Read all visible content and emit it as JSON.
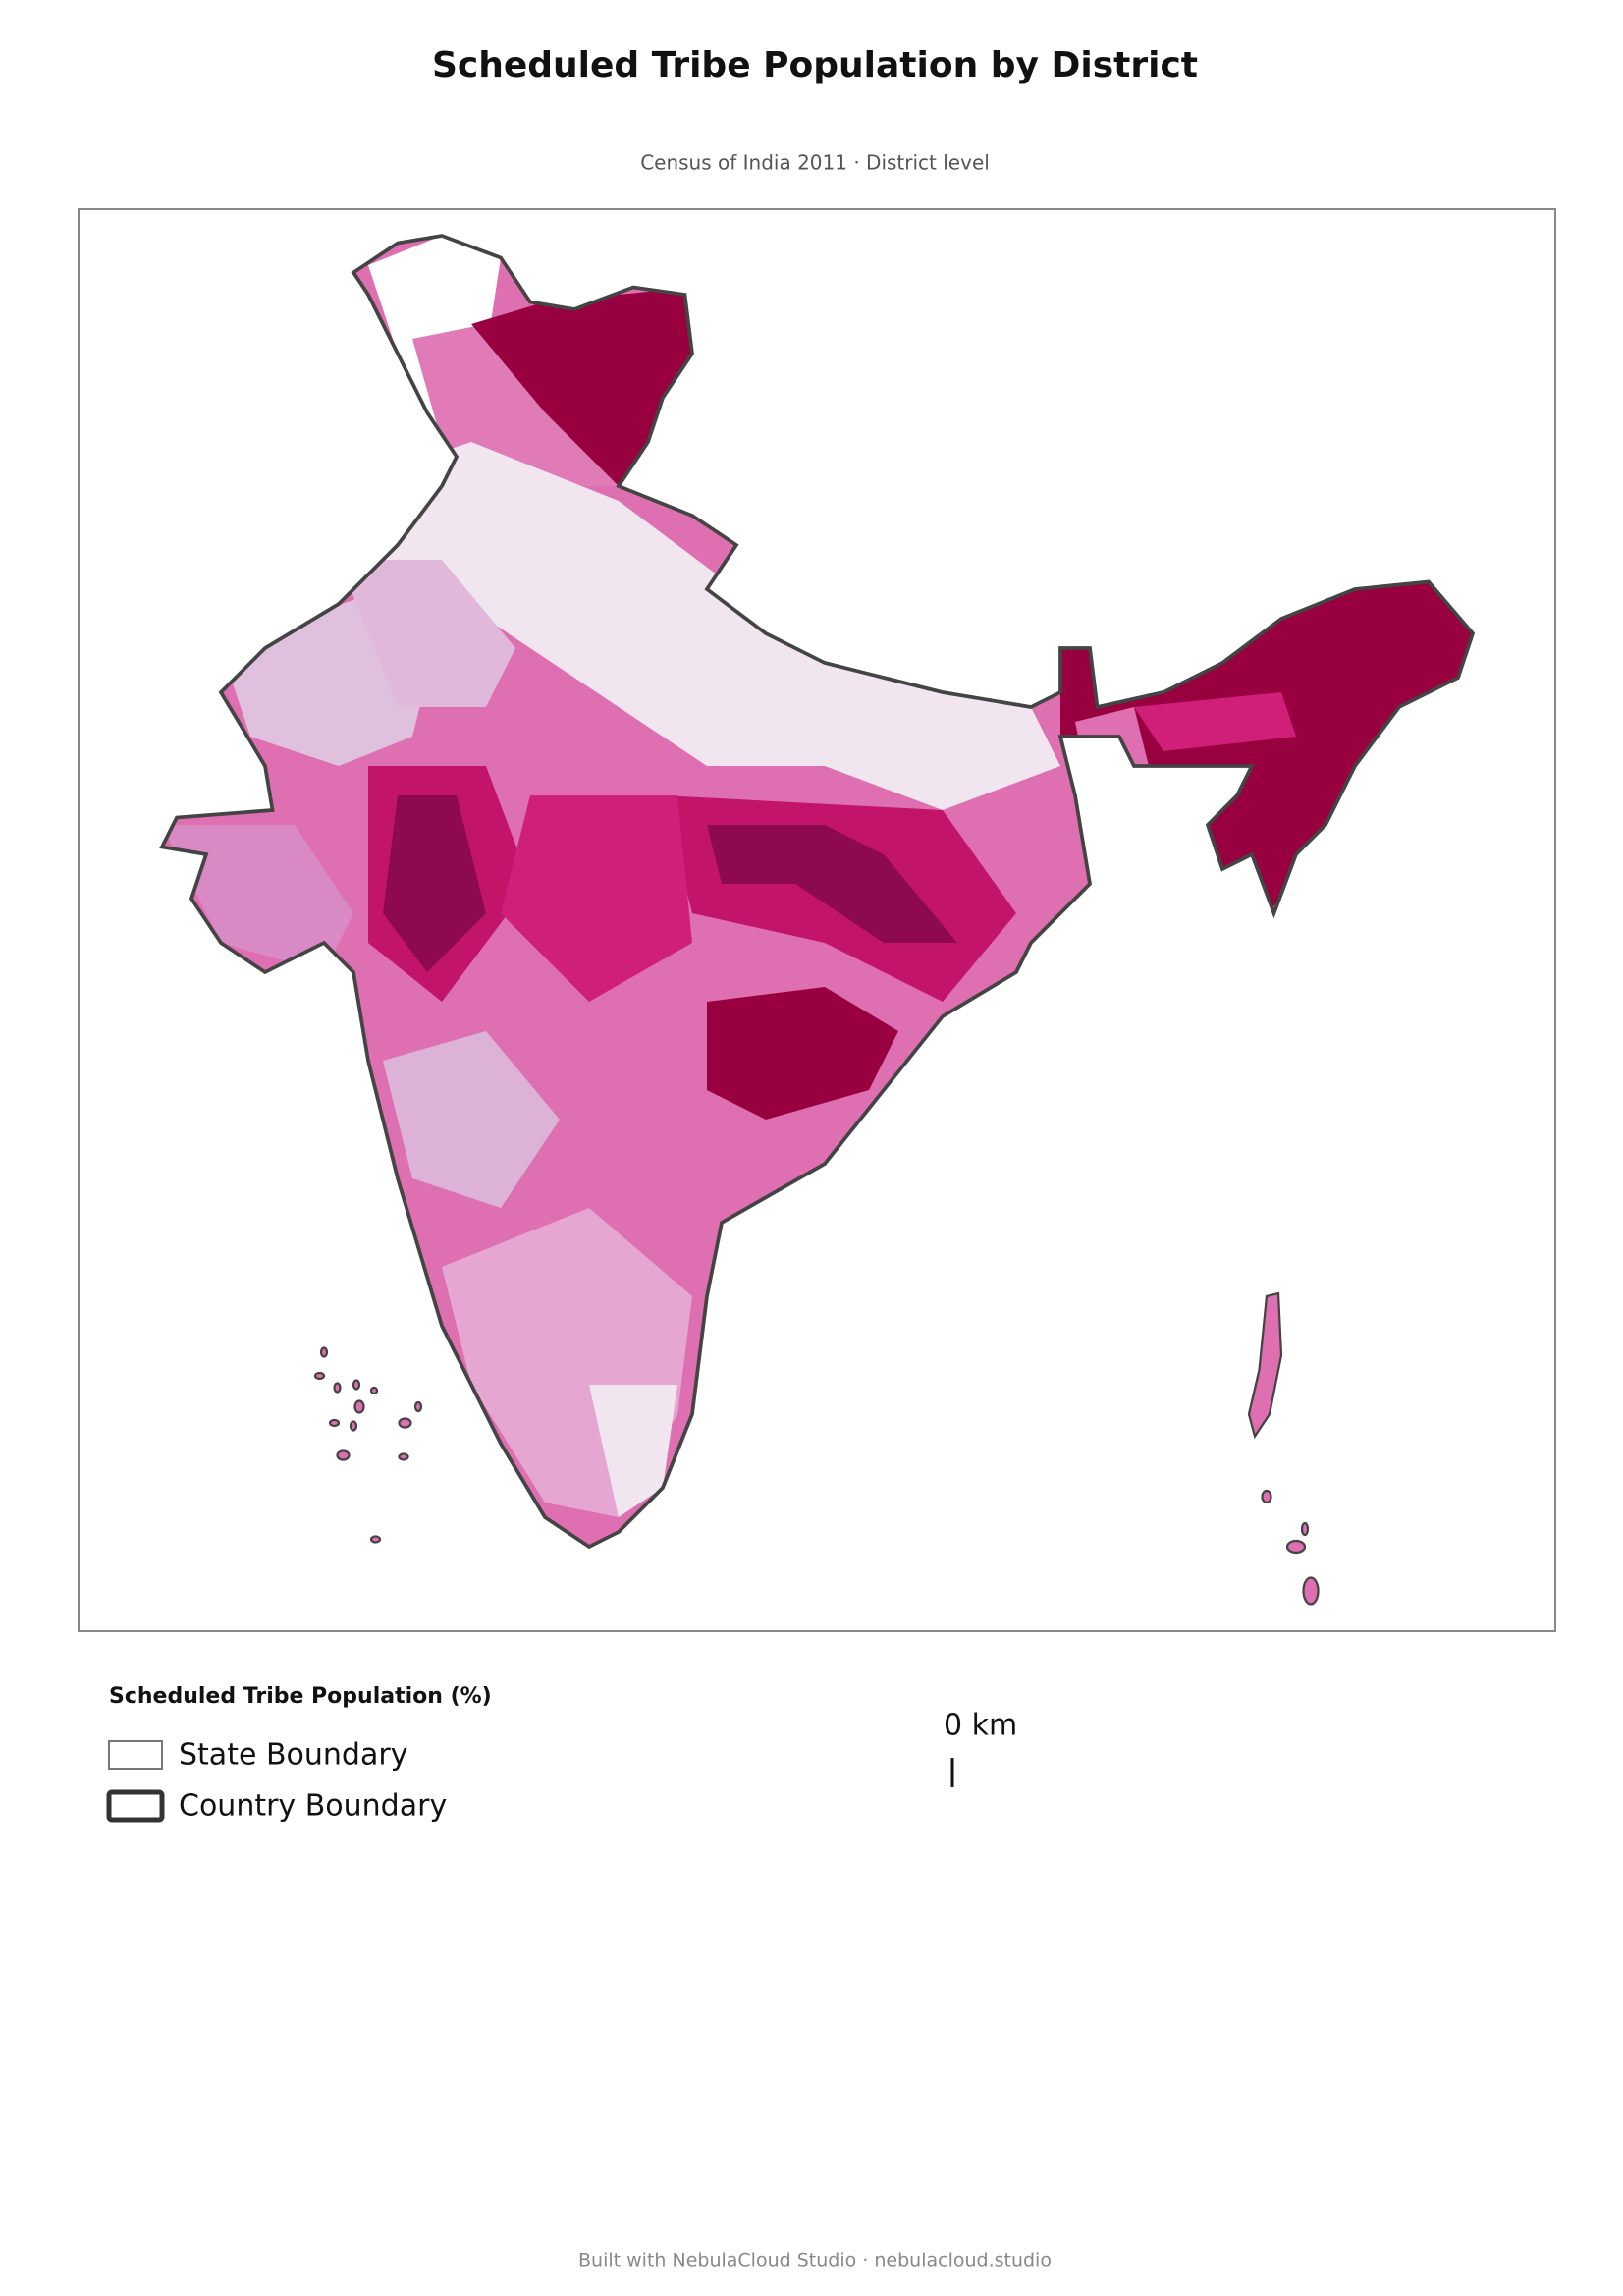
{
  "header": {
    "title": "Scheduled Tribe Population by District",
    "subtitle": "Census of India 2011 · District level"
  },
  "legend": {
    "title": "Scheduled Tribe Population (%)",
    "items": [
      "State Boundary",
      "Country Boundary"
    ]
  },
  "scale_bar": {
    "label": "0 km"
  },
  "footer": {
    "text": "Built with NebulaCloud Studio · nebulacloud.studio"
  }
}
